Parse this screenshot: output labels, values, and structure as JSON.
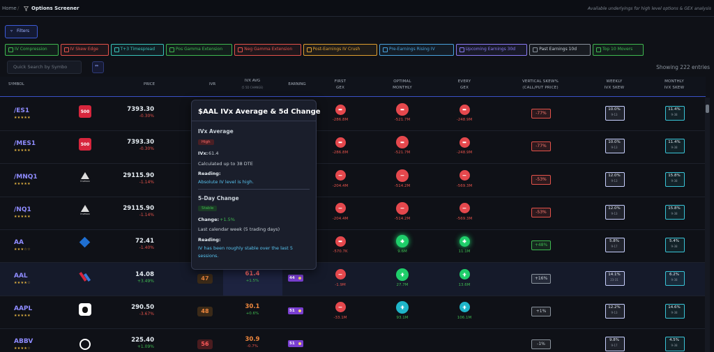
{
  "breadcrumb": {
    "home": "Home",
    "page": "Options Screener"
  },
  "tagline": "Available underlyings for high level options & GEX analysis",
  "filters_button": "Filters",
  "presets": [
    {
      "label": "IV Compression",
      "color": "#3fb950"
    },
    {
      "label": "IV Skew Edge",
      "color": "#e5534b"
    },
    {
      "label": "T+3 Timespread",
      "color": "#39c5bb"
    },
    {
      "label": "Pos Gamma Extension",
      "color": "#3fb950"
    },
    {
      "label": "Neg Gamma Extension",
      "color": "#e5534b"
    },
    {
      "label": "Post-Earnings IV Crush",
      "color": "#e0a030"
    },
    {
      "label": "Pre-Earnings Rising IV",
      "color": "#4aa3df"
    },
    {
      "label": "Upcoming Earnings 30d",
      "color": "#8b7cf6"
    },
    {
      "label": "Past Earnings 10d",
      "color": "#8b949e"
    },
    {
      "label": "Top 10 Movers",
      "color": "#3fb950"
    }
  ],
  "search_placeholder": "Quick Search by Symbo",
  "entries": "Showing 222 entries",
  "columns": {
    "symbol": "SYMBOL",
    "price": "PRICE",
    "ivr": "IVR",
    "ivx": "IVX AVG",
    "ivx_sub": "(5 5D CHANGE)",
    "earning": "EARNING",
    "first_gex": [
      "FIRST",
      "GEX"
    ],
    "optimal_monthly": [
      "OPTIMAL",
      "MONTHLY"
    ],
    "every_gex": [
      "EVERY",
      "GEX"
    ],
    "vertical_skew": [
      "VERTICAL SKEW%",
      "(CALL/PUT PRICE)"
    ],
    "weekly_skew": [
      "WEEKLY",
      "IVX SKEW"
    ],
    "monthly_skew": [
      "MONTHLY",
      "IVX SKEW"
    ]
  },
  "rows": [
    {
      "symbol": "/ES1",
      "stars": "★★★★★",
      "logo": "500",
      "price": "7393.30",
      "change": "-0.30%",
      "first_gex": "-286.8M",
      "optimal_monthly": "-521.7M",
      "every_gex": "-248.9M",
      "vertical_skew": "-77%",
      "weekly_skew": "10.0%",
      "weekly_range": "9-13",
      "monthly_skew": "11.4%",
      "monthly_range": "9-38"
    },
    {
      "symbol": "/MES1",
      "stars": "★★★★★",
      "logo": "500",
      "price": "7393.30",
      "change": "-0.30%",
      "first_gex": "-286.8M",
      "optimal_monthly": "-521.7M",
      "every_gex": "-248.9M",
      "vertical_skew": "-77%",
      "weekly_skew": "10.0%",
      "weekly_range": "9-13",
      "monthly_skew": "11.4%",
      "monthly_range": "9-38"
    },
    {
      "symbol": "/MNQ1",
      "stars": "★★★★★",
      "logo": "Invesco",
      "price": "29115.90",
      "change": "-1.14%",
      "first_gex": "-204.4M",
      "optimal_monthly": "-514.2M",
      "every_gex": "-569.3M",
      "vertical_skew": "-53%",
      "weekly_skew": "12.0%",
      "weekly_range": "9-13",
      "monthly_skew": "15.8%",
      "monthly_range": "9-38"
    },
    {
      "symbol": "/NQ1",
      "stars": "★★★★★",
      "logo": "Invesco",
      "price": "29115.90",
      "change": "-1.14%",
      "first_gex": "-204.4M",
      "optimal_monthly": "-514.2M",
      "every_gex": "-569.3M",
      "vertical_skew": "-53%",
      "weekly_skew": "12.0%",
      "weekly_range": "9-13",
      "monthly_skew": "15.8%",
      "monthly_range": "9-38"
    },
    {
      "symbol": "AA",
      "stars": "★★★☆☆",
      "price": "72.41",
      "change": "-1.40%",
      "first_gex": "-570.7K",
      "optimal_monthly": "9.6M",
      "every_gex": "11.1M",
      "vertical_skew": "+48%",
      "weekly_skew": "5.8%",
      "weekly_range": "9-17",
      "monthly_skew": "5.4%",
      "monthly_range": "9-38"
    },
    {
      "symbol": "AAL",
      "stars": "★★★★☆",
      "price": "14.08",
      "change": "+3.49%",
      "ivr": "47",
      "ivx": "61.4",
      "ivx_change": "+1.5%",
      "earning": "44",
      "first_gex": "-1.9M",
      "optimal_monthly": "27.7M",
      "every_gex": "13.6M",
      "vertical_skew": "+16%",
      "weekly_skew": "14.1%",
      "weekly_range": "23-31",
      "monthly_skew": "6.2%",
      "monthly_range": "9-38"
    },
    {
      "symbol": "AAPL",
      "stars": "★★★★★",
      "price": "290.50",
      "change": "-3.67%",
      "ivr": "48",
      "ivx": "30.1",
      "ivx_change": "+0.6%",
      "earning": "51",
      "first_gex": "-33.1M",
      "optimal_monthly": "93.1M",
      "every_gex": "106.1M",
      "vertical_skew": "+1%",
      "weekly_skew": "12.2%",
      "weekly_range": "9-13",
      "monthly_skew": "14.6%",
      "monthly_range": "9-38"
    },
    {
      "symbol": "ABBV",
      "stars": "★★★★☆",
      "price": "225.40",
      "change": "+1.09%",
      "ivr": "56",
      "ivx": "30.9",
      "ivx_change": "-0.7%",
      "earning": "51",
      "vertical_skew": "-1%",
      "weekly_skew": "9.8%",
      "weekly_range": "9-17",
      "monthly_skew": "4.5%",
      "monthly_range": "9-38"
    }
  ],
  "tooltip": {
    "title": "$AAL IVx Average & 5d Change",
    "section1": "IVx Average",
    "badge1": "High",
    "ivx_label": "IVx:",
    "ivx_value": "61.4",
    "calc": "Calculated up to 38 DTE",
    "reading1_label": "Reading:",
    "reading1": "Absolute IV level is high.",
    "section2": "5-Day Change",
    "badge2": "Stable",
    "change_label": "Change:",
    "change_value": "+1.5%",
    "period": "Last calendar week (5 trading days)",
    "reading2_label": "Reading:",
    "reading2": "IV has been roughly stable over the last 5 sessions."
  }
}
